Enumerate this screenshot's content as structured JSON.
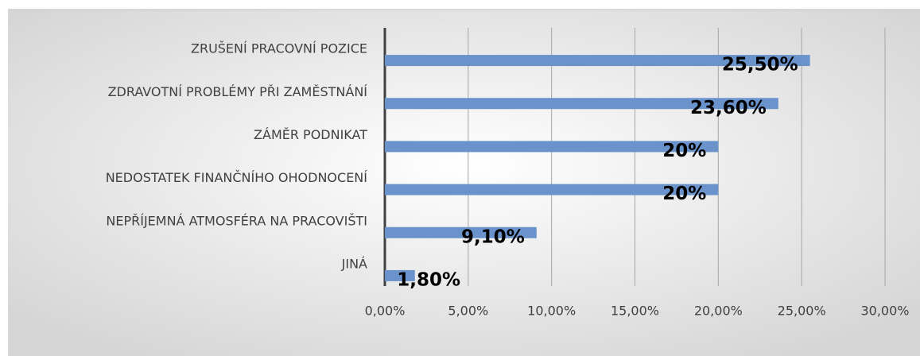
{
  "chart_data": {
    "type": "bar",
    "orientation": "horizontal",
    "categories": [
      "ZRUŠENÍ PRACOVNÍ POZICE",
      "ZDRAVOTNÍ PROBLÉMY PŘI ZAMĚSTNÁNÍ",
      "ZÁMĚR PODNIKAT",
      "NEDOSTATEK FINANČNÍHO OHODNOCENÍ",
      "NEPŘÍJEMNÁ ATMOSFÉRA NA PRACOVIŠTI",
      "JINÁ"
    ],
    "values": [
      25.5,
      23.6,
      20,
      20,
      9.1,
      1.8
    ],
    "value_labels": [
      "25,50%",
      "23,60%",
      "20%",
      "20%",
      "9,10%",
      "1,80%"
    ],
    "color": "#6a93cc",
    "xlim": [
      0,
      30
    ],
    "xticks": [
      {
        "value": 0,
        "label": "0,00%"
      },
      {
        "value": 5,
        "label": "5,00%"
      },
      {
        "value": 10,
        "label": "10,00%"
      },
      {
        "value": 15,
        "label": "15,00%"
      },
      {
        "value": 20,
        "label": "20,00%"
      },
      {
        "value": 25,
        "label": "25,00%"
      },
      {
        "value": 30,
        "label": "30,00%"
      }
    ],
    "grid": true
  }
}
